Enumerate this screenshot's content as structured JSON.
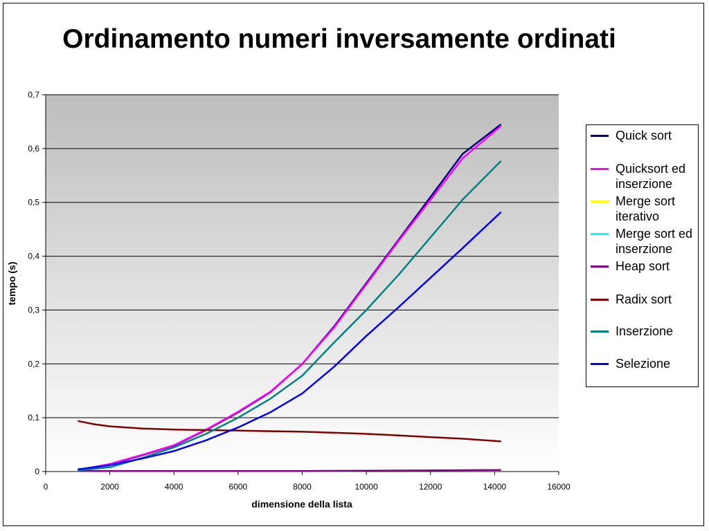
{
  "chart_data": {
    "type": "line",
    "title": "Ordinamento numeri inversamente ordinati",
    "xlabel": "dimensione della lista",
    "ylabel": "tempo (s)",
    "xlim": [
      0,
      16000
    ],
    "ylim": [
      0,
      0.7
    ],
    "xticks": [
      "0",
      "2000",
      "4000",
      "6000",
      "8000",
      "10000",
      "12000",
      "14000",
      "16000"
    ],
    "yticks": [
      "0",
      "0,1",
      "0,2",
      "0,3",
      "0,4",
      "0,5",
      "0,6",
      "0,7"
    ],
    "grid": true,
    "legend_position": "right",
    "series": [
      {
        "name": "Quick sort",
        "color": "#000080",
        "x": [
          1000,
          2000,
          3000,
          4000,
          5000,
          6000,
          7000,
          8000,
          9000,
          10000,
          11000,
          12000,
          13000,
          14200
        ],
        "y": [
          0.003,
          0.013,
          0.03,
          0.048,
          0.077,
          0.11,
          0.147,
          0.2,
          0.27,
          0.35,
          0.43,
          0.51,
          0.59,
          0.645
        ]
      },
      {
        "name": "Quicksort ed inserzione",
        "color": "#ff00ff",
        "x": [
          1000,
          2000,
          3000,
          4000,
          5000,
          6000,
          7000,
          8000,
          9000,
          10000,
          11000,
          12000,
          13000,
          14200
        ],
        "y": [
          0.003,
          0.014,
          0.031,
          0.049,
          0.078,
          0.111,
          0.148,
          0.2,
          0.268,
          0.348,
          0.428,
          0.505,
          0.582,
          0.642
        ]
      },
      {
        "name": "Merge sort iterativo",
        "color": "#ffff00",
        "x": [
          1000,
          4000,
          8000,
          12000,
          14200
        ],
        "y": [
          0.001,
          0.001,
          0.001,
          0.002,
          0.002
        ]
      },
      {
        "name": "Merge sort ed inserzione",
        "color": "#00ffff",
        "x": [
          1000,
          4000,
          8000,
          12000,
          14200
        ],
        "y": [
          0.001,
          0.001,
          0.001,
          0.002,
          0.002
        ]
      },
      {
        "name": "Heap sort",
        "color": "#800080",
        "x": [
          1000,
          4000,
          8000,
          12000,
          14200
        ],
        "y": [
          0.001,
          0.001,
          0.001,
          0.002,
          0.003
        ]
      },
      {
        "name": "Radix sort",
        "color": "#800000",
        "x": [
          1000,
          1500,
          2000,
          3000,
          4000,
          5000,
          6000,
          7000,
          8000,
          9000,
          10000,
          11000,
          12000,
          13000,
          14200
        ],
        "y": [
          0.094,
          0.088,
          0.084,
          0.08,
          0.078,
          0.077,
          0.076,
          0.075,
          0.074,
          0.072,
          0.07,
          0.067,
          0.064,
          0.061,
          0.056
        ]
      },
      {
        "name": "Inserzione",
        "color": "#008080",
        "x": [
          1000,
          2000,
          3000,
          4000,
          5000,
          6000,
          7000,
          8000,
          9000,
          10000,
          11000,
          12000,
          13000,
          14200
        ],
        "y": [
          0.002,
          0.008,
          0.025,
          0.045,
          0.07,
          0.1,
          0.135,
          0.178,
          0.24,
          0.3,
          0.365,
          0.435,
          0.505,
          0.577
        ]
      },
      {
        "name": "Selezione",
        "color": "#0000ff",
        "x": [
          1000,
          2000,
          3000,
          4000,
          5000,
          6000,
          7000,
          8000,
          9000,
          10000,
          11000,
          12000,
          13000,
          14200
        ],
        "y": [
          0.004,
          0.012,
          0.024,
          0.038,
          0.058,
          0.082,
          0.11,
          0.145,
          0.195,
          0.252,
          0.305,
          0.36,
          0.415,
          0.482
        ]
      }
    ]
  }
}
